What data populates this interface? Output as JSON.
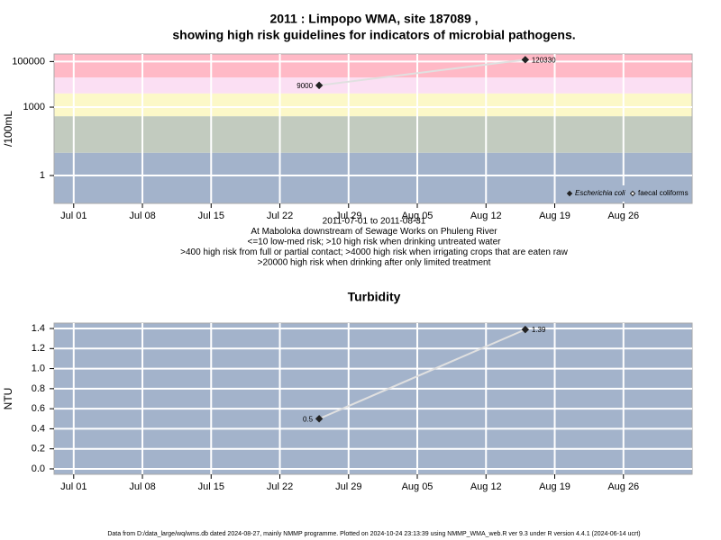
{
  "chart_data": [
    {
      "type": "line",
      "title": [
        "2011 : Limpopo WMA, site 187089 ,",
        "showing high risk guidelines for indicators of microbial pathogens."
      ],
      "y_label": "/100mL",
      "log_scale": true,
      "x": [
        "2011-07-26",
        "2011-08-16"
      ],
      "series": [
        {
          "name": "Escherichia coli",
          "color": "#222222",
          "marker": "filled-diamond",
          "values": [
            9000,
            120330
          ]
        },
        {
          "name": "faecal coliforms",
          "color": "#222222",
          "marker": "hollow-diamond",
          "values": [
            null,
            null
          ]
        }
      ],
      "line_color": "#e0e0e0",
      "xlim": [
        "2011-06-29",
        "2011-09-02"
      ],
      "xticks": [
        {
          "value": "2011-07-01",
          "label": "Jul 01"
        },
        {
          "value": "2011-07-08",
          "label": "Jul 08"
        },
        {
          "value": "2011-07-15",
          "label": "Jul 15"
        },
        {
          "value": "2011-07-22",
          "label": "Jul 22"
        },
        {
          "value": "2011-07-29",
          "label": "Jul 29"
        },
        {
          "value": "2011-08-05",
          "label": "Aug 05"
        },
        {
          "value": "2011-08-12",
          "label": "Aug 12"
        },
        {
          "value": "2011-08-19",
          "label": "Aug 19"
        },
        {
          "value": "2011-08-26",
          "label": "Aug 26"
        }
      ],
      "ylim": [
        0.06,
        214000
      ],
      "yticks": [
        1,
        1000,
        100000
      ],
      "thresholds": [
        10,
        400,
        4000,
        20000
      ],
      "band_colors": [
        "#a3b3cb",
        "#c2cbbf",
        "#fcf8c8",
        "#fbdff3",
        "#ffb9c6"
      ],
      "grid": true,
      "legend": "bottom-right",
      "notes": [
        "2011-07-01 to 2011-08-31",
        "At Maboloka downstream of Sewage Works on Phuleng River",
        "<=10 low-med risk; >10 high risk when drinking untreated water",
        ">400 high risk from full or partial contact; >4000 high risk when irrigating crops that are eaten raw",
        ">20000 high risk when drinking after only limited treatment"
      ]
    },
    {
      "type": "line",
      "title": [
        "Turbidity"
      ],
      "y_label": "NTU",
      "log_scale": false,
      "x": [
        "2011-07-26",
        "2011-08-16"
      ],
      "series": [
        {
          "name": "Turbidity",
          "color": "#222222",
          "marker": "filled-diamond",
          "values": [
            0.5,
            1.39
          ]
        }
      ],
      "line_color": "#e0e0e0",
      "xlim": [
        "2011-06-29",
        "2011-09-02"
      ],
      "xticks": [
        {
          "value": "2011-07-01",
          "label": "Jul 01"
        },
        {
          "value": "2011-07-08",
          "label": "Jul 08"
        },
        {
          "value": "2011-07-15",
          "label": "Jul 15"
        },
        {
          "value": "2011-07-22",
          "label": "Jul 22"
        },
        {
          "value": "2011-07-29",
          "label": "Jul 29"
        },
        {
          "value": "2011-08-05",
          "label": "Aug 05"
        },
        {
          "value": "2011-08-12",
          "label": "Aug 12"
        },
        {
          "value": "2011-08-19",
          "label": "Aug 19"
        },
        {
          "value": "2011-08-26",
          "label": "Aug 26"
        }
      ],
      "ylim": [
        -0.054,
        1.454
      ],
      "yticks": [
        {
          "value": 0,
          "label": "0.0"
        },
        0.2,
        0.4,
        0.6,
        0.8,
        {
          "value": 1,
          "label": "1.0"
        },
        1.2,
        1.4
      ],
      "background": "#a3b3cb",
      "grid": true
    }
  ],
  "footer": "Data from D:/data_large/wq/wms.db dated 2024-08-27, mainly NMMP programme. Plotted on 2024-10-24 23:13:39 using NMMP_WMA_web.R ver 9.3 under R version 4.4.1 (2024-06-14 ucrt)"
}
